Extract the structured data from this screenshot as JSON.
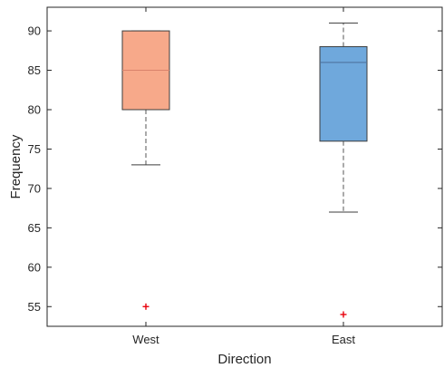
{
  "chart_data": {
    "type": "box",
    "xlabel": "Direction",
    "ylabel": "Frequency",
    "ylim": [
      52.5,
      93
    ],
    "yticks": [
      55,
      60,
      65,
      70,
      75,
      80,
      85,
      90
    ],
    "grid": false,
    "series": [
      {
        "name": "West",
        "whisker_low": 73,
        "q1": 80,
        "median": 85,
        "q3": 90,
        "whisker_high": 90,
        "outliers": [
          55
        ],
        "fill_color": "#f7a98a",
        "edge_color": "#3d3d3d",
        "median_color": "#d9826b"
      },
      {
        "name": "East",
        "whisker_low": 67,
        "q1": 76,
        "median": 86,
        "q3": 88,
        "whisker_high": 91,
        "outliers": [
          54
        ],
        "fill_color": "#6fa8dc",
        "edge_color": "#3d3d3d",
        "median_color": "#4a6f99"
      }
    ],
    "outlier_color": "#e8000b",
    "whisker_color": "#555555"
  }
}
